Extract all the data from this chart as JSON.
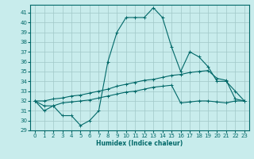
{
  "xlabel": "Humidex (Indice chaleur)",
  "background_color": "#c8ecec",
  "grid_color": "#a0c8c8",
  "line_color": "#006868",
  "xlim": [
    -0.5,
    23.5
  ],
  "ylim": [
    29,
    41.8
  ],
  "yticks": [
    29,
    30,
    31,
    32,
    33,
    34,
    35,
    36,
    37,
    38,
    39,
    40,
    41
  ],
  "xticks": [
    0,
    1,
    2,
    3,
    4,
    5,
    6,
    7,
    8,
    9,
    10,
    11,
    12,
    13,
    14,
    15,
    16,
    17,
    18,
    19,
    20,
    21,
    22,
    23
  ],
  "line1_x": [
    0,
    1,
    2,
    3,
    4,
    5,
    6,
    7,
    8,
    9,
    10,
    11,
    12,
    13,
    14,
    15,
    16,
    17,
    18,
    19,
    20,
    21,
    22,
    23
  ],
  "line1_y": [
    32.0,
    31.0,
    31.5,
    30.5,
    30.5,
    29.5,
    30.0,
    31.0,
    36.0,
    39.0,
    40.5,
    40.5,
    40.5,
    41.5,
    40.5,
    37.5,
    35.0,
    37.0,
    36.5,
    35.5,
    34.0,
    34.0,
    33.0,
    32.0
  ],
  "line2_x": [
    0,
    1,
    2,
    3,
    4,
    5,
    6,
    7,
    8,
    9,
    10,
    11,
    12,
    13,
    14,
    15,
    16,
    17,
    18,
    19,
    20,
    21,
    22,
    23
  ],
  "line2_y": [
    32.0,
    32.0,
    32.2,
    32.3,
    32.5,
    32.6,
    32.8,
    33.0,
    33.2,
    33.5,
    33.7,
    33.9,
    34.1,
    34.2,
    34.4,
    34.6,
    34.7,
    34.9,
    35.0,
    35.1,
    34.3,
    34.1,
    32.2,
    32.0
  ],
  "line3_x": [
    0,
    1,
    2,
    3,
    4,
    5,
    6,
    7,
    8,
    9,
    10,
    11,
    12,
    13,
    14,
    15,
    16,
    17,
    18,
    19,
    20,
    21,
    22,
    23
  ],
  "line3_y": [
    32.0,
    31.5,
    31.5,
    31.8,
    31.9,
    32.0,
    32.1,
    32.3,
    32.5,
    32.7,
    32.9,
    33.0,
    33.2,
    33.4,
    33.5,
    33.6,
    31.8,
    31.9,
    32.0,
    32.0,
    31.9,
    31.8,
    32.0,
    32.0
  ]
}
